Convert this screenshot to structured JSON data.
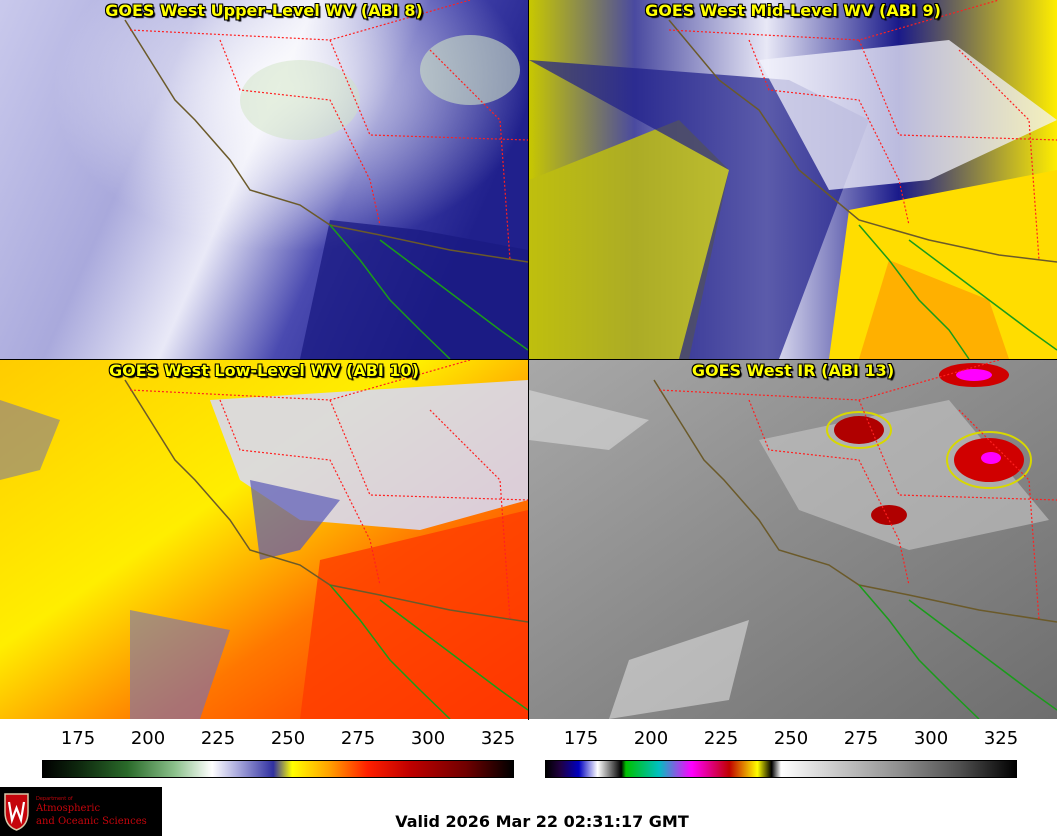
{
  "panels": [
    {
      "title": "GOES West Upper-Level WV (ABI 8)"
    },
    {
      "title": "GOES West Mid-Level WV (ABI 9)"
    },
    {
      "title": "GOES West Low-Level WV (ABI 10)"
    },
    {
      "title": "GOES West IR (ABI 13)"
    }
  ],
  "colorbars": [
    {
      "ticks": [
        "175",
        "200",
        "225",
        "250",
        "275",
        "300",
        "325"
      ]
    },
    {
      "ticks": [
        "175",
        "200",
        "225",
        "250",
        "275",
        "300",
        "325"
      ]
    }
  ],
  "logo": {
    "department": "Department of",
    "line1": "Atmospheric",
    "line2": "and Oceanic Sciences"
  },
  "valid_time": "Valid 2026 Mar 22 02:31:17 GMT",
  "colors": {
    "title_text": "#ffff00",
    "state_borders": "#ff2020",
    "us_coast": "#6b5a2a",
    "mexico_coast": "#1a9c1a"
  }
}
